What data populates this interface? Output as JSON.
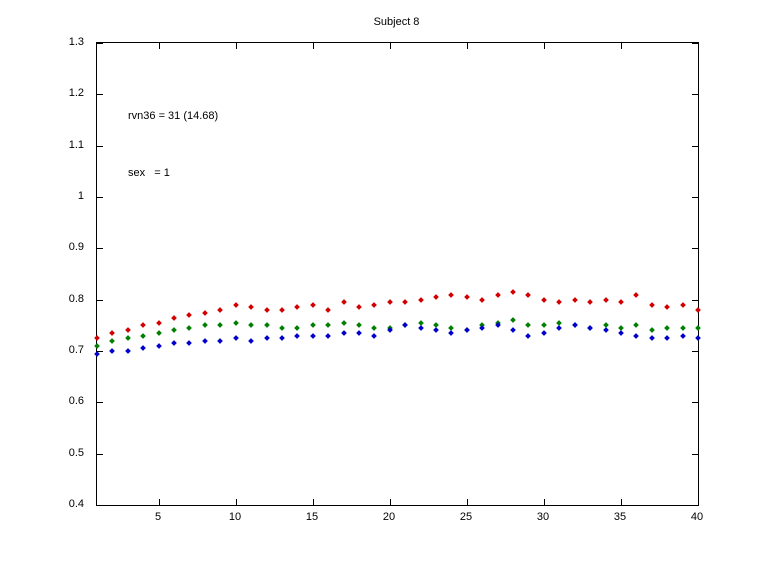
{
  "figure": {
    "title": "Subject 8"
  },
  "chart_data": {
    "type": "scatter",
    "title": "Subject 8",
    "annotations": [
      "rvn36 = 31 (14.68)",
      "sex   = 1"
    ],
    "xlabel": "",
    "ylabel": "",
    "grid": false,
    "legend": null,
    "xlim": [
      1,
      40
    ],
    "ylim": [
      0.4,
      1.3
    ],
    "xticks": [
      5,
      10,
      15,
      20,
      25,
      30,
      35,
      40
    ],
    "yticks": [
      0.4,
      0.5,
      0.6,
      0.7,
      0.8,
      0.9,
      1.0,
      1.1,
      1.2,
      1.3
    ],
    "yticklabels": [
      "0.4",
      "0.5",
      "0.6",
      "0.7",
      "0.8",
      "0.9",
      "1",
      "1.1",
      "1.2",
      "1.3"
    ],
    "x": [
      1,
      2,
      3,
      4,
      5,
      6,
      7,
      8,
      9,
      10,
      11,
      12,
      13,
      14,
      15,
      16,
      17,
      18,
      19,
      20,
      21,
      22,
      23,
      24,
      25,
      26,
      27,
      28,
      29,
      30,
      31,
      32,
      33,
      34,
      35,
      36,
      37,
      38,
      39,
      40
    ],
    "series": [
      {
        "name": "series-red",
        "color": "#d40000",
        "values": [
          0.725,
          0.735,
          0.74,
          0.75,
          0.755,
          0.765,
          0.77,
          0.775,
          0.78,
          0.79,
          0.785,
          0.78,
          0.78,
          0.785,
          0.79,
          0.78,
          0.795,
          0.785,
          0.79,
          0.795,
          0.795,
          0.8,
          0.805,
          0.81,
          0.805,
          0.8,
          0.81,
          0.815,
          0.81,
          0.8,
          0.795,
          0.8,
          0.795,
          0.8,
          0.795,
          0.81,
          0.79,
          0.785,
          0.79,
          0.78
        ]
      },
      {
        "name": "series-green",
        "color": "#007f00",
        "values": [
          0.71,
          0.72,
          0.725,
          0.73,
          0.735,
          0.74,
          0.745,
          0.75,
          0.75,
          0.755,
          0.75,
          0.75,
          0.745,
          0.745,
          0.75,
          0.75,
          0.755,
          0.75,
          0.745,
          0.745,
          0.75,
          0.755,
          0.75,
          0.745,
          0.74,
          0.75,
          0.755,
          0.76,
          0.75,
          0.75,
          0.755,
          0.75,
          0.745,
          0.75,
          0.745,
          0.75,
          0.74,
          0.745,
          0.745,
          0.745
        ]
      },
      {
        "name": "series-blue",
        "color": "#0000cc",
        "values": [
          0.695,
          0.7,
          0.7,
          0.705,
          0.71,
          0.715,
          0.715,
          0.72,
          0.72,
          0.725,
          0.72,
          0.725,
          0.725,
          0.73,
          0.73,
          0.73,
          0.735,
          0.735,
          0.73,
          0.74,
          0.75,
          0.745,
          0.74,
          0.735,
          0.74,
          0.745,
          0.75,
          0.74,
          0.73,
          0.735,
          0.745,
          0.75,
          0.745,
          0.74,
          0.735,
          0.73,
          0.725,
          0.725,
          0.73,
          0.725
        ]
      }
    ]
  }
}
